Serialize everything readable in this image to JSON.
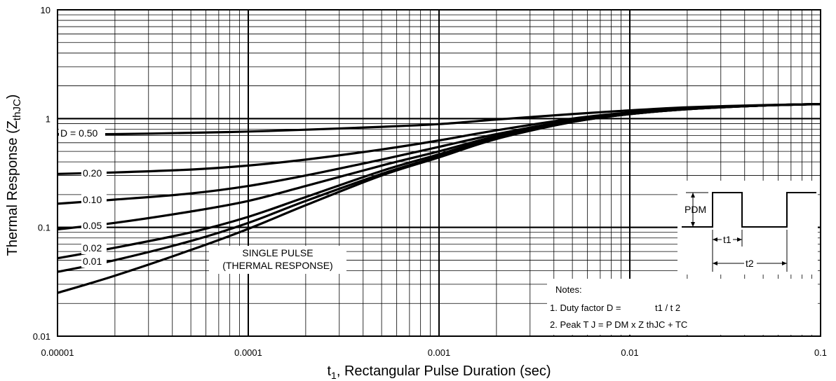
{
  "chart_data": {
    "type": "line",
    "xlabel": "t1, Rectangular Pulse Duration (sec)",
    "ylabel": "Thermal Response (Z thJC)",
    "x_scale": "log",
    "y_scale": "log",
    "xlim": [
      1e-05,
      0.1
    ],
    "ylim": [
      0.01,
      10
    ],
    "x_tick_labels": [
      "0.00001",
      "0.0001",
      "0.001",
      "0.01",
      "0.1"
    ],
    "y_tick_labels": [
      "0.01",
      "0.1",
      "1",
      "10"
    ],
    "grid": true,
    "series": [
      {
        "name": "D = 0.50",
        "x": [
          1e-05,
          2e-05,
          5e-05,
          0.0001,
          0.0002,
          0.0005,
          0.001,
          0.002,
          0.005,
          0.01,
          0.02,
          0.05,
          0.1
        ],
        "y": [
          0.72,
          0.72,
          0.74,
          0.76,
          0.79,
          0.84,
          0.89,
          0.98,
          1.1,
          1.19,
          1.27,
          1.33,
          1.36
        ]
      },
      {
        "name": "0.20",
        "x": [
          1e-05,
          2e-05,
          5e-05,
          0.0001,
          0.0002,
          0.0005,
          0.001,
          0.002,
          0.005,
          0.01,
          0.02,
          0.05,
          0.1
        ],
        "y": [
          0.31,
          0.32,
          0.34,
          0.37,
          0.42,
          0.52,
          0.63,
          0.78,
          1.0,
          1.14,
          1.24,
          1.32,
          1.36
        ]
      },
      {
        "name": "0.10",
        "x": [
          1e-05,
          2e-05,
          5e-05,
          0.0001,
          0.0002,
          0.0005,
          0.001,
          0.002,
          0.005,
          0.01,
          0.02,
          0.05,
          0.1
        ],
        "y": [
          0.165,
          0.18,
          0.205,
          0.24,
          0.3,
          0.42,
          0.55,
          0.72,
          0.97,
          1.12,
          1.23,
          1.32,
          1.36
        ]
      },
      {
        "name": "0.05",
        "x": [
          1e-05,
          2e-05,
          5e-05,
          0.0001,
          0.0002,
          0.0005,
          0.001,
          0.002,
          0.005,
          0.01,
          0.02,
          0.05,
          0.1
        ],
        "y": [
          0.096,
          0.11,
          0.14,
          0.175,
          0.24,
          0.37,
          0.5,
          0.69,
          0.95,
          1.11,
          1.23,
          1.32,
          1.36
        ]
      },
      {
        "name": "0.02",
        "x": [
          1e-05,
          2e-05,
          5e-05,
          0.0001,
          0.0002,
          0.0005,
          0.001,
          0.002,
          0.005,
          0.01,
          0.02,
          0.05,
          0.1
        ],
        "y": [
          0.052,
          0.065,
          0.09,
          0.125,
          0.19,
          0.33,
          0.47,
          0.67,
          0.94,
          1.1,
          1.22,
          1.32,
          1.36
        ]
      },
      {
        "name": "0.01",
        "x": [
          1e-05,
          2e-05,
          5e-05,
          0.0001,
          0.0002,
          0.0005,
          0.001,
          0.002,
          0.005,
          0.01,
          0.02,
          0.05,
          0.1
        ],
        "y": [
          0.039,
          0.05,
          0.075,
          0.11,
          0.175,
          0.31,
          0.45,
          0.66,
          0.93,
          1.1,
          1.22,
          1.32,
          1.36
        ]
      },
      {
        "name": "SINGLE PULSE",
        "x": [
          1e-05,
          2e-05,
          5e-05,
          0.0001,
          0.0002,
          0.0005,
          0.001,
          0.002,
          0.005,
          0.01,
          0.02,
          0.05,
          0.1
        ],
        "y": [
          0.025,
          0.036,
          0.062,
          0.097,
          0.16,
          0.3,
          0.44,
          0.65,
          0.93,
          1.1,
          1.22,
          1.32,
          1.36
        ]
      }
    ],
    "annotations": {
      "single_pulse_line1": "SINGLE PULSE",
      "single_pulse_line2": "(THERMAL RESPONSE)"
    }
  },
  "notes": {
    "heading": "Notes:",
    "note1_prefix": "1. Duty factor D =",
    "note1_value": "t1 / t 2",
    "note2": "2. Peak T J = P DM x Z thJC + TC"
  },
  "waveform": {
    "pdm_label": "PDM",
    "t1_label": "t1",
    "t2_label": "t2"
  }
}
